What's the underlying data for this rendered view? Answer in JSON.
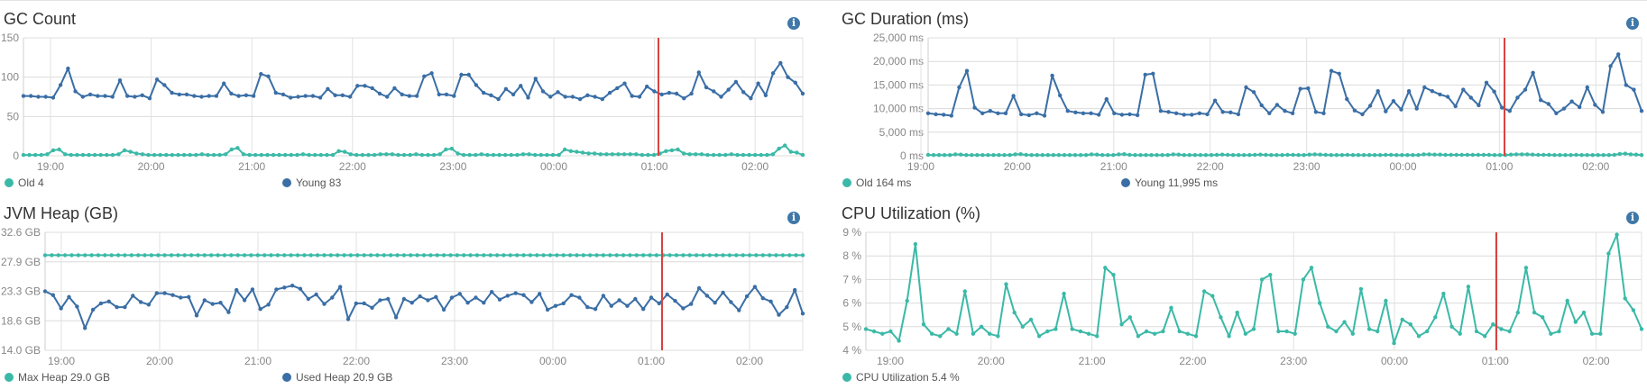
{
  "chart_data": [
    {
      "type": "line",
      "title": "GC Count",
      "yticks": [
        "0",
        "50",
        "100",
        "150"
      ],
      "ylim": [
        0,
        150
      ],
      "xticks": [
        "19:00",
        "20:00",
        "21:00",
        "22:00",
        "23:00",
        "00:00",
        "01:00",
        "02:00"
      ],
      "marker_time": "01:00",
      "legend": [
        "Old 4",
        "Young 83"
      ],
      "colors": [
        "#3bb9a7",
        "#3a6ea5"
      ],
      "grid": true,
      "series": [
        {
          "name": "Old",
          "values": [
            1,
            1,
            1,
            1,
            2,
            7,
            8,
            2,
            1,
            1,
            1,
            1,
            1,
            1,
            1,
            1,
            2,
            7,
            5,
            3,
            2,
            1,
            1,
            1,
            1,
            1,
            1,
            1,
            1,
            1,
            2,
            1,
            1,
            1,
            2,
            8,
            10,
            2,
            1,
            1,
            1,
            1,
            1,
            1,
            1,
            1,
            1,
            2,
            1,
            1,
            1,
            1,
            1,
            6,
            5,
            2,
            1,
            1,
            1,
            1,
            2,
            2,
            2,
            1,
            1,
            1,
            2,
            1,
            1,
            1,
            2,
            8,
            9,
            3,
            1,
            1,
            1,
            2,
            1,
            1,
            1,
            1,
            1,
            1,
            2,
            2,
            1,
            1,
            1,
            1,
            1,
            8,
            6,
            5,
            4,
            3,
            3,
            2,
            2,
            2,
            2,
            2,
            2,
            2,
            1,
            1,
            1,
            3,
            6,
            7,
            8,
            3,
            2,
            2,
            2,
            1,
            1,
            1,
            1,
            2,
            1,
            1,
            1,
            1,
            1,
            1,
            2,
            9,
            13,
            5,
            4,
            1
          ]
        },
        {
          "name": "Young",
          "values": [
            76,
            76,
            75,
            75,
            74,
            90,
            111,
            82,
            75,
            78,
            76,
            76,
            75,
            96,
            76,
            75,
            77,
            73,
            97,
            90,
            80,
            78,
            78,
            76,
            75,
            76,
            76,
            92,
            79,
            76,
            77,
            76,
            104,
            101,
            80,
            78,
            74,
            75,
            76,
            76,
            74,
            85,
            77,
            77,
            75,
            89,
            89,
            86,
            79,
            75,
            86,
            78,
            76,
            76,
            101,
            105,
            78,
            78,
            76,
            103,
            103,
            90,
            80,
            77,
            72,
            85,
            78,
            89,
            74,
            98,
            82,
            75,
            81,
            75,
            75,
            72,
            77,
            75,
            72,
            80,
            86,
            92,
            76,
            75,
            88,
            82,
            78,
            80,
            79,
            73,
            79,
            106,
            87,
            82,
            75,
            84,
            94,
            81,
            73,
            92,
            77,
            105,
            118,
            100,
            93,
            79
          ]
        }
      ]
    },
    {
      "type": "line",
      "title": "GC Duration (ms)",
      "yticks": [
        "0 ms",
        "5,000 ms",
        "10,000 ms",
        "15,000 ms",
        "20,000 ms",
        "25,000 ms"
      ],
      "ylim": [
        0,
        25000
      ],
      "xticks": [
        "19:00",
        "20:00",
        "21:00",
        "22:00",
        "23:00",
        "00:00",
        "01:00",
        "02:00"
      ],
      "marker_time": "01:00",
      "legend": [
        "Old 164 ms",
        "Young 11,995 ms"
      ],
      "colors": [
        "#3bb9a7",
        "#3a6ea5"
      ],
      "grid": true,
      "series": [
        {
          "name": "Old",
          "values": [
            200,
            150,
            150,
            150,
            150,
            300,
            250,
            150,
            150,
            150,
            150,
            150,
            150,
            150,
            150,
            150,
            300,
            350,
            200,
            150,
            150,
            150,
            150,
            150,
            150,
            150,
            150,
            150,
            150,
            150,
            300,
            250,
            150,
            150,
            150,
            300,
            350,
            200,
            150,
            150,
            150,
            150,
            150,
            150,
            150,
            300,
            250,
            150,
            150,
            150,
            150,
            150,
            150,
            200,
            250,
            200,
            150,
            150,
            150,
            150,
            200,
            250,
            200,
            150,
            150,
            150,
            200,
            200,
            150,
            150,
            250,
            300,
            250,
            200,
            150,
            150,
            150,
            200,
            150,
            150,
            150,
            150,
            150,
            150,
            200,
            200,
            150,
            150,
            150,
            150,
            150,
            300,
            300,
            250,
            250,
            200,
            200,
            200,
            200,
            200,
            200,
            200,
            200,
            200,
            150,
            150,
            150,
            250,
            300,
            300,
            300,
            250,
            200,
            200,
            200,
            150,
            150,
            150,
            150,
            200,
            150,
            150,
            150,
            150,
            150,
            150,
            200,
            400,
            450,
            300,
            250,
            150
          ]
        },
        {
          "name": "Young",
          "values": [
            9000,
            8800,
            8700,
            8500,
            14500,
            18000,
            10200,
            9000,
            9500,
            9000,
            9000,
            12700,
            8800,
            8600,
            9000,
            8500,
            17000,
            12800,
            9500,
            9200,
            9000,
            9000,
            8700,
            12000,
            9000,
            8700,
            8800,
            8600,
            17200,
            17400,
            9500,
            9300,
            9000,
            8700,
            8700,
            9000,
            8800,
            11700,
            9300,
            9200,
            8800,
            14500,
            13500,
            10700,
            9000,
            10800,
            9500,
            9000,
            14200,
            14300,
            9300,
            9000,
            18000,
            17400,
            12000,
            9600,
            8800,
            10600,
            13700,
            9400,
            11600,
            9800,
            13700,
            10000,
            14500,
            13700,
            13000,
            12500,
            10500,
            14000,
            12300,
            10700,
            15500,
            13600,
            10200,
            9500,
            12300,
            14000,
            17600,
            11800,
            11000,
            9000,
            10000,
            11500,
            10300,
            14500,
            10800,
            9300,
            19000,
            21500,
            15000,
            14000,
            9500
          ]
        }
      ]
    },
    {
      "type": "line",
      "title": "JVM Heap (GB)",
      "yticks": [
        "14.0 GB",
        "18.6 GB",
        "23.3 GB",
        "27.9 GB",
        "32.6 GB"
      ],
      "ylim": [
        14.0,
        32.6
      ],
      "xticks": [
        "19:00",
        "20:00",
        "21:00",
        "22:00",
        "23:00",
        "00:00",
        "01:00",
        "02:00"
      ],
      "marker_time": "01:00",
      "legend": [
        "Max Heap 29.0 GB",
        "Used Heap 20.9 GB"
      ],
      "colors": [
        "#3bb9a7",
        "#3a6ea5"
      ],
      "grid": true,
      "series": [
        {
          "name": "Max Heap",
          "values": [
            29,
            29,
            29,
            29,
            29,
            29,
            29,
            29,
            29,
            29,
            29,
            29,
            29,
            29,
            29,
            29,
            29,
            29,
            29,
            29,
            29,
            29,
            29,
            29,
            29,
            29,
            29,
            29,
            29,
            29,
            29,
            29,
            29,
            29,
            29,
            29,
            29,
            29,
            29,
            29,
            29,
            29,
            29,
            29,
            29,
            29,
            29,
            29,
            29,
            29,
            29,
            29,
            29,
            29,
            29,
            29,
            29,
            29,
            29,
            29,
            29,
            29,
            29,
            29,
            29,
            29,
            29,
            29,
            29,
            29,
            29,
            29,
            29,
            29,
            29,
            29,
            29,
            29,
            29,
            29,
            29,
            29,
            29,
            29,
            29,
            29,
            29,
            29,
            29,
            29,
            29,
            29,
            29,
            29,
            29,
            29,
            29,
            29,
            29,
            29,
            29,
            29,
            29,
            29,
            29,
            29,
            29,
            29,
            29,
            29,
            29,
            29,
            29,
            29,
            29
          ]
        },
        {
          "name": "Used Heap",
          "values": [
            23.3,
            22.7,
            20.6,
            22.4,
            20.9,
            17.5,
            20.4,
            21.4,
            21.7,
            20.8,
            20.8,
            22.6,
            21.6,
            21.2,
            23.0,
            23.0,
            22.7,
            22.3,
            22.4,
            19.5,
            21.9,
            21.3,
            21.5,
            20.0,
            23.5,
            21.9,
            23.6,
            20.5,
            21.2,
            23.6,
            23.9,
            24.2,
            23.7,
            22.1,
            22.8,
            21.3,
            22.3,
            24.0,
            18.9,
            21.4,
            21.4,
            20.7,
            21.9,
            22.1,
            19.2,
            22.1,
            21.5,
            22.5,
            21.9,
            22.4,
            20.4,
            22.3,
            22.9,
            21.5,
            22.3,
            21.5,
            23.2,
            22.0,
            22.6,
            23.0,
            22.7,
            21.6,
            22.9,
            20.4,
            21.0,
            21.4,
            22.7,
            22.3,
            20.8,
            20.5,
            22.6,
            21.0,
            21.9,
            21.0,
            22.1,
            20.5,
            22.3,
            21.4,
            22.8,
            21.8,
            20.6,
            21.3,
            23.8,
            22.6,
            21.5,
            23.1,
            21.6,
            20.3,
            22.5,
            24.0,
            22.2,
            21.7,
            19.6,
            20.8,
            23.5,
            19.8
          ]
        }
      ]
    },
    {
      "type": "line",
      "title": "CPU Utilization (%)",
      "yticks": [
        "4 %",
        "5 %",
        "6 %",
        "7 %",
        "8 %",
        "9 %"
      ],
      "ylim": [
        4,
        9
      ],
      "xticks": [
        "19:00",
        "20:00",
        "21:00",
        "22:00",
        "23:00",
        "00:00",
        "01:00",
        "02:00"
      ],
      "marker_time": "01:00",
      "legend": [
        "CPU Utilization 5.4 %"
      ],
      "colors": [
        "#3bb9a7"
      ],
      "grid": true,
      "series": [
        {
          "name": "CPU Utilization",
          "values": [
            4.9,
            4.8,
            4.7,
            4.8,
            4.4,
            6.1,
            8.5,
            5.1,
            4.7,
            4.6,
            4.9,
            4.7,
            6.5,
            4.7,
            5.0,
            4.7,
            4.6,
            6.8,
            5.6,
            5.0,
            5.3,
            4.6,
            4.8,
            4.9,
            6.4,
            4.9,
            4.8,
            4.7,
            4.6,
            7.5,
            7.2,
            5.1,
            5.4,
            4.6,
            4.8,
            4.7,
            4.8,
            5.8,
            4.8,
            4.7,
            4.6,
            6.5,
            6.3,
            5.4,
            4.6,
            5.6,
            4.7,
            4.9,
            7.0,
            7.2,
            4.8,
            4.8,
            4.7,
            7.0,
            7.5,
            6.0,
            5.0,
            4.8,
            5.2,
            4.7,
            6.6,
            4.9,
            4.8,
            6.1,
            4.3,
            5.3,
            5.1,
            4.6,
            4.8,
            5.4,
            6.4,
            5.0,
            4.7,
            6.7,
            4.8,
            4.6,
            5.1,
            4.9,
            4.8,
            5.6,
            7.5,
            5.6,
            5.4,
            4.7,
            4.8,
            6.1,
            5.2,
            5.6,
            4.7,
            4.7,
            8.1,
            8.9,
            6.2,
            5.7,
            4.9
          ]
        }
      ]
    }
  ]
}
